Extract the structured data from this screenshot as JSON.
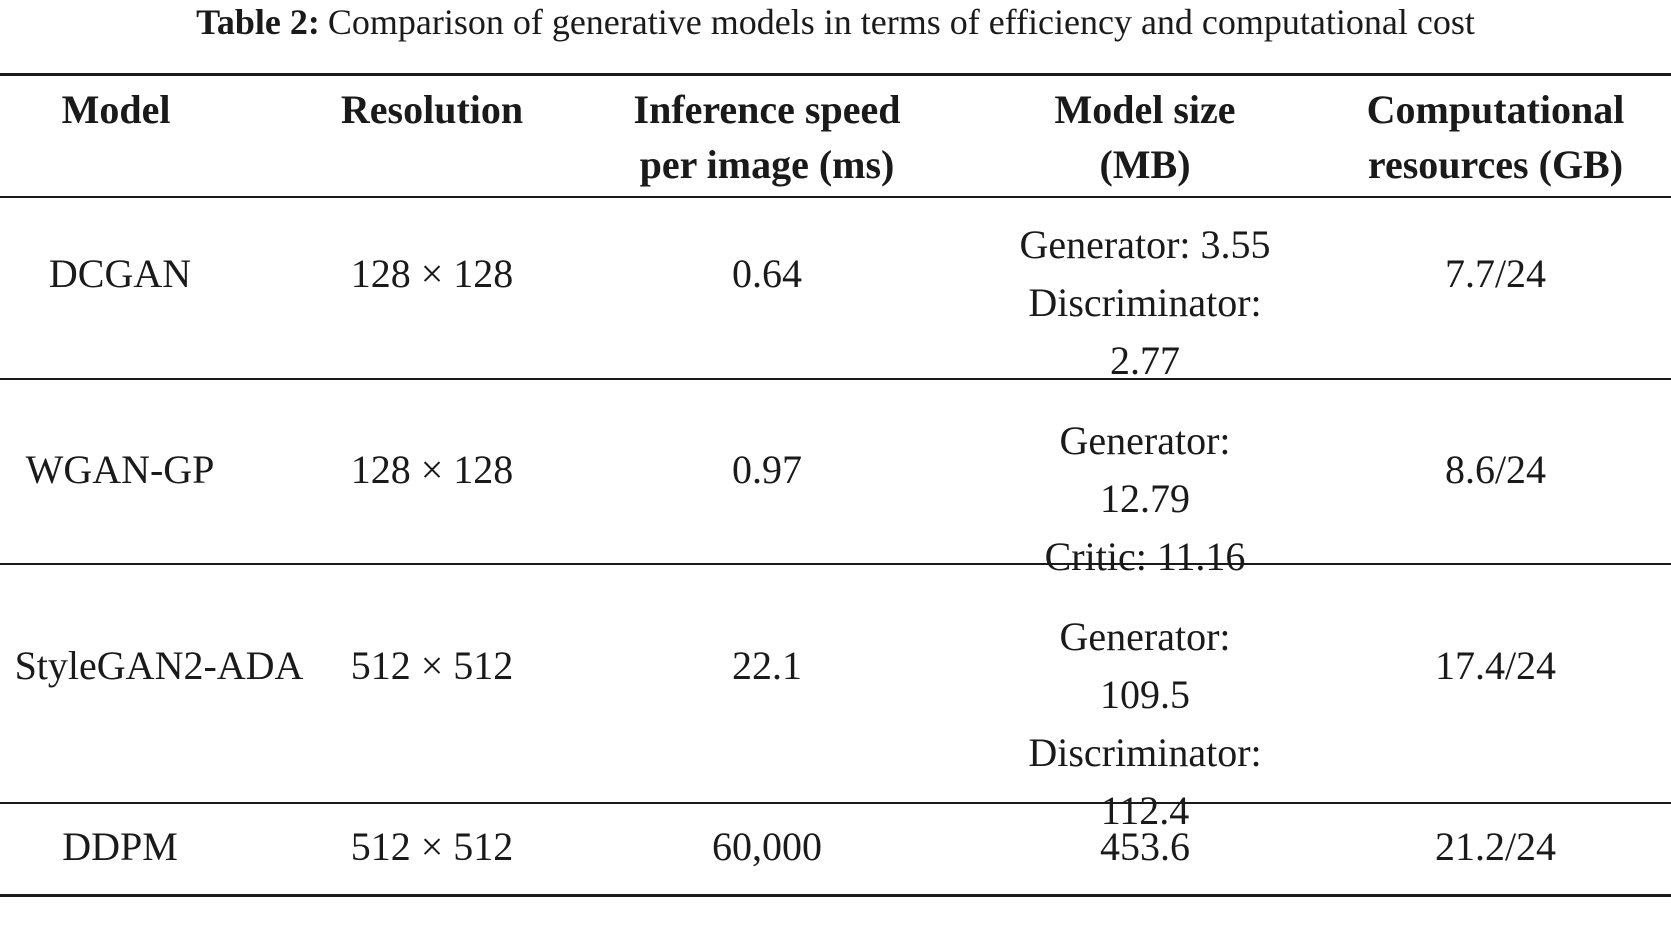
{
  "caption": {
    "label": "Table 2:",
    "text": "Comparison of generative models in terms of efficiency and computational cost"
  },
  "table": {
    "headers": [
      {
        "line1": "Model",
        "line2": ""
      },
      {
        "line1": "Resolution",
        "line2": ""
      },
      {
        "line1": "Inference speed",
        "line2": "per image (ms)"
      },
      {
        "line1": "Model size",
        "line2": "(MB)"
      },
      {
        "line1": "Computational",
        "line2": "resources (GB)"
      }
    ],
    "rows": [
      {
        "model": "DCGAN",
        "resolution": "128 × 128",
        "speed": "0.64",
        "size_lines": [
          "Generator: 3.55",
          "Discriminator:",
          "2.77"
        ],
        "resources": "7.7/24"
      },
      {
        "model": "WGAN-GP",
        "resolution": "128 × 128",
        "speed": "0.97",
        "size_lines": [
          "Generator:",
          "12.79",
          "Critic: 11.16"
        ],
        "resources": "8.6/24"
      },
      {
        "model": "StyleGAN2-ADA",
        "resolution": "512 × 512",
        "speed": "22.1",
        "size_lines": [
          "Generator:",
          "109.5",
          "Discriminator:",
          "112.4"
        ],
        "resources": "17.4/24"
      },
      {
        "model": "DDPM",
        "resolution": "512 × 512",
        "speed": "60,000",
        "size_lines": [
          "453.6"
        ],
        "resources": "21.2/24"
      }
    ]
  }
}
